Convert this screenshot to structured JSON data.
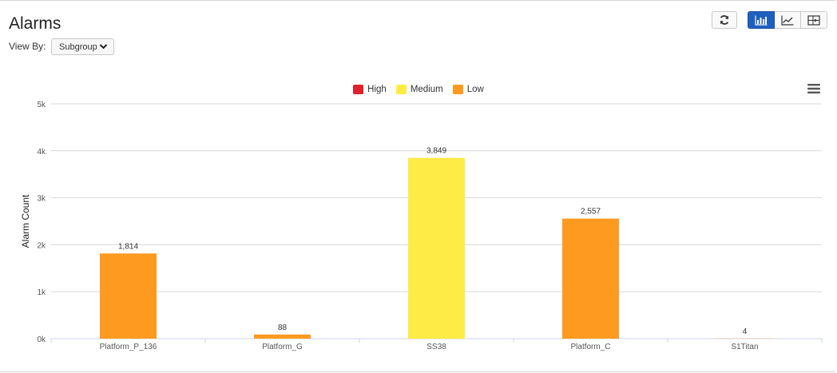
{
  "header": {
    "title": "Alarms",
    "view_by_label": "View By:",
    "view_by_value": "Subgroup"
  },
  "toolbar": {
    "refresh_icon": "refresh-icon",
    "bar_chart_icon": "bar-chart-icon",
    "line_chart_icon": "line-chart-icon",
    "table_icon": "table-icon",
    "active_color": "#1f5fbf"
  },
  "menu_icon": "hamburger-menu-icon",
  "chart_data": {
    "type": "bar",
    "title": "",
    "xlabel": "",
    "ylabel": "Alarm Count",
    "ylim": [
      0,
      5000
    ],
    "y_ticks": [
      "0k",
      "1k",
      "2k",
      "3k",
      "4k",
      "5k"
    ],
    "y_tick_values": [
      0,
      1000,
      2000,
      3000,
      4000,
      5000
    ],
    "legend": [
      {
        "name": "High",
        "color": "#e0202a"
      },
      {
        "name": "Medium",
        "color": "#ffeb45"
      },
      {
        "name": "Low",
        "color": "#ff9a20"
      }
    ],
    "legend_position": "top-center",
    "grid": true,
    "categories": [
      "Platform_P_136",
      "Platform_G",
      "SS38",
      "Platform_C",
      "S1Titan"
    ],
    "values": [
      1814,
      88,
      3849,
      2557,
      4
    ],
    "value_labels": [
      "1,814",
      "88",
      "3,849",
      "2,557",
      "4"
    ],
    "bar_severity": [
      "Low",
      "Low",
      "Medium",
      "Low",
      "Low"
    ]
  }
}
